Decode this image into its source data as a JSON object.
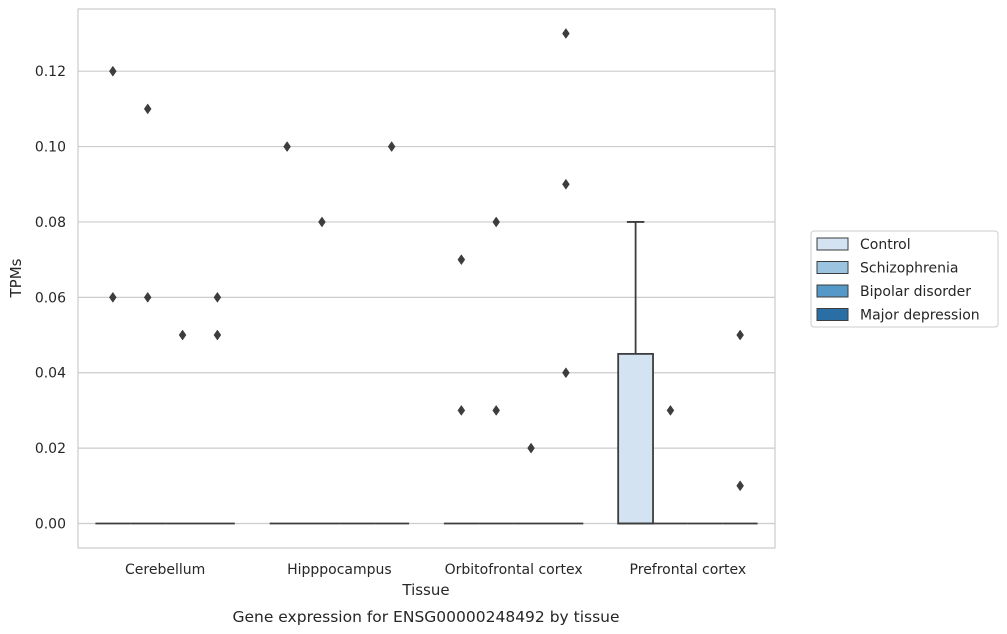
{
  "chart_data": {
    "type": "box",
    "caption": "Gene expression for ENSG00000248492 by tissue",
    "xlabel": "Tissue",
    "ylabel": "TPMs",
    "ylim": [
      -0.0065,
      0.1365
    ],
    "yticks": [
      "0.00",
      "0.02",
      "0.04",
      "0.06",
      "0.08",
      "0.10",
      "0.12"
    ],
    "grid": true,
    "legend_position": "right",
    "categories": [
      "Cerebellum",
      "Hipppocampus",
      "Orbitofrontal cortex",
      "Prefrontal cortex"
    ],
    "series": [
      {
        "name": "Control",
        "color": "#d3e3f1",
        "boxes": [
          {
            "q1": 0,
            "median": 0,
            "q3": 0,
            "whisker_low": 0,
            "whisker_high": 0,
            "outliers": [
              0.06,
              0.12
            ]
          },
          {
            "q1": 0,
            "median": 0,
            "q3": 0,
            "whisker_low": 0,
            "whisker_high": 0,
            "outliers": [
              0.1
            ]
          },
          {
            "q1": 0,
            "median": 0,
            "q3": 0,
            "whisker_low": 0,
            "whisker_high": 0,
            "outliers": [
              0.07,
              0.03
            ]
          },
          {
            "q1": 0,
            "median": 0,
            "q3": 0.045,
            "whisker_low": 0,
            "whisker_high": 0.08,
            "outliers": []
          }
        ]
      },
      {
        "name": "Schizophrenia",
        "color": "#9ac4df",
        "boxes": [
          {
            "q1": 0,
            "median": 0,
            "q3": 0,
            "whisker_low": 0,
            "whisker_high": 0,
            "outliers": [
              0.06,
              0.11
            ]
          },
          {
            "q1": 0,
            "median": 0,
            "q3": 0,
            "whisker_low": 0,
            "whisker_high": 0,
            "outliers": [
              0.08
            ]
          },
          {
            "q1": 0,
            "median": 0,
            "q3": 0,
            "whisker_low": 0,
            "whisker_high": 0,
            "outliers": [
              0.08,
              0.03
            ]
          },
          {
            "q1": 0,
            "median": 0,
            "q3": 0,
            "whisker_low": 0,
            "whisker_high": 0,
            "outliers": [
              0.03
            ]
          }
        ]
      },
      {
        "name": "Bipolar disorder",
        "color": "#5599c8",
        "boxes": [
          {
            "q1": 0,
            "median": 0,
            "q3": 0,
            "whisker_low": 0,
            "whisker_high": 0,
            "outliers": [
              0.05
            ]
          },
          {
            "q1": 0,
            "median": 0,
            "q3": 0,
            "whisker_low": 0,
            "whisker_high": 0,
            "outliers": []
          },
          {
            "q1": 0,
            "median": 0,
            "q3": 0,
            "whisker_low": 0,
            "whisker_high": 0,
            "outliers": [
              0.02
            ]
          },
          {
            "q1": 0,
            "median": 0,
            "q3": 0,
            "whisker_low": 0,
            "whisker_high": 0,
            "outliers": []
          }
        ]
      },
      {
        "name": "Major depression",
        "color": "#2a6ea6",
        "boxes": [
          {
            "q1": 0,
            "median": 0,
            "q3": 0,
            "whisker_low": 0,
            "whisker_high": 0,
            "outliers": [
              0.06,
              0.05
            ]
          },
          {
            "q1": 0,
            "median": 0,
            "q3": 0,
            "whisker_low": 0,
            "whisker_high": 0,
            "outliers": [
              0.1
            ]
          },
          {
            "q1": 0,
            "median": 0,
            "q3": 0,
            "whisker_low": 0,
            "whisker_high": 0,
            "outliers": [
              0.13,
              0.09,
              0.04
            ]
          },
          {
            "q1": 0,
            "median": 0,
            "q3": 0,
            "whisker_low": 0,
            "whisker_high": 0,
            "outliers": [
              0.05,
              0.01
            ]
          }
        ]
      }
    ]
  }
}
